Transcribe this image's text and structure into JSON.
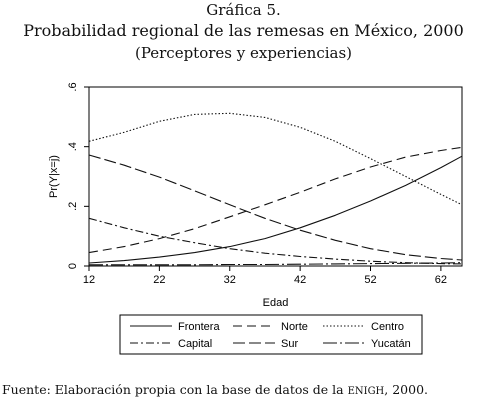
{
  "titles": {
    "line1": "Gráfica 5.",
    "line2": "Probabilidad regional de las remesas en México, 2000",
    "line3": "(Perceptores y experiencias)"
  },
  "source": {
    "prefix": "Fuente: Elaboración propia con la base de datos de la ",
    "acronym": "ENIGH",
    "suffix": ", 2000."
  },
  "chart_data": {
    "type": "line",
    "title": "Probabilidad regional de las remesas en México, 2000",
    "subtitle": "(Perceptores y experiencias)",
    "xlabel": "Edad",
    "ylabel": "Pr(Y|x=j)",
    "xlim": [
      12,
      65
    ],
    "ylim": [
      0,
      0.6
    ],
    "x_ticks": [
      12,
      22,
      32,
      42,
      52,
      62
    ],
    "y_ticks": [
      0,
      0.2,
      0.4,
      0.6
    ],
    "y_tick_labels": [
      "0",
      ".2",
      ".4",
      ".6"
    ],
    "grid": false,
    "legend_position": "bottom",
    "x": [
      12,
      17,
      22,
      27,
      32,
      37,
      42,
      47,
      52,
      57,
      62,
      65
    ],
    "series": [
      {
        "name": "Frontera",
        "dash": "solid",
        "values": [
          0.01,
          0.018,
          0.03,
          0.045,
          0.065,
          0.092,
          0.128,
          0.17,
          0.218,
          0.27,
          0.33,
          0.368
        ]
      },
      {
        "name": "Norte",
        "dash": "longdash",
        "values": [
          0.045,
          0.065,
          0.092,
          0.125,
          0.165,
          0.205,
          0.247,
          0.292,
          0.332,
          0.365,
          0.387,
          0.398
        ]
      },
      {
        "name": "Centro",
        "dash": "dot",
        "values": [
          0.418,
          0.448,
          0.485,
          0.508,
          0.512,
          0.498,
          0.465,
          0.418,
          0.36,
          0.3,
          0.24,
          0.205
        ]
      },
      {
        "name": "Capital",
        "dash": "dashdot",
        "values": [
          0.16,
          0.128,
          0.1,
          0.078,
          0.058,
          0.043,
          0.032,
          0.023,
          0.016,
          0.011,
          0.008,
          0.007
        ]
      },
      {
        "name": "Sur",
        "dash": "medium",
        "values": [
          0.372,
          0.338,
          0.298,
          0.252,
          0.205,
          0.16,
          0.12,
          0.086,
          0.058,
          0.038,
          0.025,
          0.02
        ]
      },
      {
        "name": "Yucatán",
        "dash": "dashdotlong",
        "values": [
          0.004,
          0.004,
          0.004,
          0.004,
          0.005,
          0.005,
          0.006,
          0.007,
          0.008,
          0.009,
          0.01,
          0.011
        ]
      }
    ]
  }
}
